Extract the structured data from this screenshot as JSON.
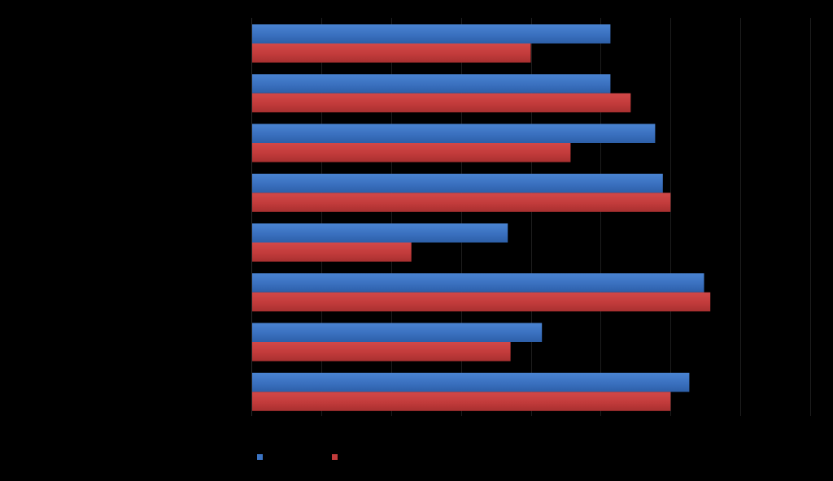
{
  "chart_data": {
    "type": "bar",
    "orientation": "horizontal",
    "title": "",
    "xlabel": "",
    "ylabel": "",
    "xlim": [
      0,
      8
    ],
    "grid": true,
    "legend": "bottom",
    "categories": [
      "",
      "",
      "",
      "",
      "",
      "",
      "",
      ""
    ],
    "series": [
      {
        "color": "#3b74c4",
        "values": [
          5.14,
          5.14,
          5.78,
          5.89,
          3.67,
          6.48,
          4.16,
          6.27
        ]
      },
      {
        "color": "#c23b3b",
        "values": [
          4.0,
          5.43,
          4.57,
          6.0,
          2.29,
          6.57,
          3.71,
          6.0
        ]
      }
    ]
  }
}
